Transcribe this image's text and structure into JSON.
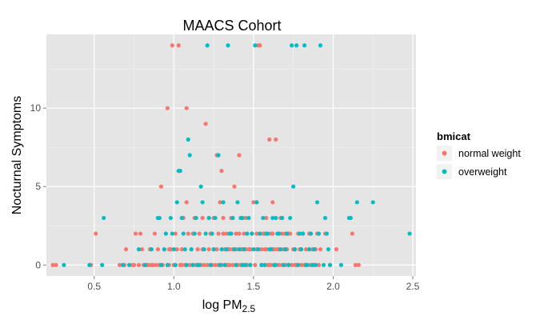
{
  "chart_data": {
    "type": "scatter",
    "title": "MAACS Cohort",
    "xlabel": "log PM",
    "xlabel_sub": "2.5",
    "ylabel": "Nocturnal Symptoms",
    "xlim": [
      0.2,
      2.52
    ],
    "ylim": [
      -0.7,
      14.7
    ],
    "x_ticks": [
      0.5,
      1.0,
      1.5,
      2.0,
      2.5
    ],
    "x_tick_labels": [
      "0.5",
      "1.0",
      "1.5",
      "2.0",
      "2.5"
    ],
    "y_ticks": [
      0,
      5,
      10
    ],
    "y_tick_labels": [
      "0",
      "5",
      "10"
    ],
    "grid": true,
    "legend": {
      "title": "bmicat",
      "placement": "right"
    },
    "series": [
      {
        "name": "normal weight",
        "color": "#F8766D",
        "points": [
          [
            0.24,
            0
          ],
          [
            0.26,
            0
          ],
          [
            0.48,
            0
          ],
          [
            0.51,
            2
          ],
          [
            0.66,
            0
          ],
          [
            0.69,
            0
          ],
          [
            0.7,
            1
          ],
          [
            0.74,
            0
          ],
          [
            0.75,
            0
          ],
          [
            0.76,
            2
          ],
          [
            0.78,
            0
          ],
          [
            0.79,
            2
          ],
          [
            0.8,
            1
          ],
          [
            0.81,
            0
          ],
          [
            0.83,
            0
          ],
          [
            0.84,
            0
          ],
          [
            0.85,
            1
          ],
          [
            0.86,
            0
          ],
          [
            0.87,
            0
          ],
          [
            0.88,
            2
          ],
          [
            0.89,
            0
          ],
          [
            0.9,
            1
          ],
          [
            0.91,
            0
          ],
          [
            0.92,
            5
          ],
          [
            0.93,
            0
          ],
          [
            0.94,
            1
          ],
          [
            0.95,
            2
          ],
          [
            0.96,
            10
          ],
          [
            0.97,
            0
          ],
          [
            0.98,
            1
          ],
          [
            0.99,
            14
          ],
          [
            1.0,
            0
          ],
          [
            1.01,
            2
          ],
          [
            1.02,
            1
          ],
          [
            1.03,
            14
          ],
          [
            1.04,
            0
          ],
          [
            1.05,
            1
          ],
          [
            1.06,
            3
          ],
          [
            1.07,
            0
          ],
          [
            1.08,
            10
          ],
          [
            1.09,
            2
          ],
          [
            1.1,
            0
          ],
          [
            1.11,
            1
          ],
          [
            1.12,
            0
          ],
          [
            1.13,
            3
          ],
          [
            1.14,
            0
          ],
          [
            1.15,
            1
          ],
          [
            1.16,
            2
          ],
          [
            1.17,
            0
          ],
          [
            1.18,
            1
          ],
          [
            1.19,
            0
          ],
          [
            1.2,
            9
          ],
          [
            1.21,
            0
          ],
          [
            1.22,
            1
          ],
          [
            1.23,
            2
          ],
          [
            1.24,
            0
          ],
          [
            1.25,
            3
          ],
          [
            1.26,
            0
          ],
          [
            1.27,
            1
          ],
          [
            1.28,
            0
          ],
          [
            1.29,
            4
          ],
          [
            1.3,
            0
          ],
          [
            1.31,
            2
          ],
          [
            1.32,
            1
          ],
          [
            1.33,
            0
          ],
          [
            1.34,
            1
          ],
          [
            1.35,
            0
          ],
          [
            1.36,
            2
          ],
          [
            1.37,
            0
          ],
          [
            1.38,
            5
          ],
          [
            1.39,
            1
          ],
          [
            1.4,
            0
          ],
          [
            1.41,
            2
          ],
          [
            1.42,
            0
          ],
          [
            1.43,
            1
          ],
          [
            1.44,
            0
          ],
          [
            1.45,
            3
          ],
          [
            1.46,
            0
          ],
          [
            1.47,
            1
          ],
          [
            1.48,
            0
          ],
          [
            1.49,
            2
          ],
          [
            1.5,
            4
          ],
          [
            1.51,
            0
          ],
          [
            1.52,
            1
          ],
          [
            1.53,
            14
          ],
          [
            1.54,
            14
          ],
          [
            1.55,
            0
          ],
          [
            1.56,
            2
          ],
          [
            1.57,
            0
          ],
          [
            1.58,
            1
          ],
          [
            1.59,
            0
          ],
          [
            1.6,
            8
          ],
          [
            1.61,
            0
          ],
          [
            1.62,
            2
          ],
          [
            1.63,
            0
          ],
          [
            1.64,
            8
          ],
          [
            1.65,
            1
          ],
          [
            1.66,
            0
          ],
          [
            1.67,
            3
          ],
          [
            1.7,
            0
          ],
          [
            1.72,
            2
          ],
          [
            1.75,
            1
          ],
          [
            1.78,
            2
          ],
          [
            1.82,
            0
          ],
          [
            1.85,
            2
          ],
          [
            1.88,
            0
          ],
          [
            1.92,
            1
          ],
          [
            1.98,
            0
          ],
          [
            2.02,
            1
          ],
          [
            2.12,
            2
          ],
          [
            2.14,
            0
          ],
          [
            2.16,
            0
          ],
          [
            1.68,
            0
          ],
          [
            1.71,
            1
          ],
          [
            1.73,
            2
          ],
          [
            1.76,
            0
          ],
          [
            1.79,
            1
          ],
          [
            1.81,
            2
          ],
          [
            1.87,
            1
          ],
          [
            1.9,
            2
          ],
          [
            1.95,
            2
          ],
          [
            0.97,
            1
          ],
          [
            1.05,
            0
          ],
          [
            1.15,
            0
          ],
          [
            1.25,
            1
          ],
          [
            1.35,
            1
          ],
          [
            1.45,
            1
          ],
          [
            1.55,
            1
          ],
          [
            1.63,
            1
          ],
          [
            1.69,
            1
          ],
          [
            1.74,
            0
          ],
          [
            1.77,
            0
          ],
          [
            1.83,
            1
          ],
          [
            1.86,
            0
          ],
          [
            1.89,
            1
          ],
          [
            1.91,
            0
          ],
          [
            1.18,
            3
          ],
          [
            1.22,
            3
          ],
          [
            1.31,
            3
          ],
          [
            1.36,
            3
          ],
          [
            1.42,
            3
          ],
          [
            1.58,
            3
          ],
          [
            1.62,
            4
          ],
          [
            1.3,
            6
          ],
          [
            1.27,
            7
          ],
          [
            1.41,
            7
          ],
          [
            1.08,
            4
          ],
          [
            1.52,
            4
          ],
          [
            1.12,
            2
          ],
          [
            1.28,
            2
          ],
          [
            1.33,
            2
          ],
          [
            1.46,
            2
          ],
          [
            1.52,
            2
          ],
          [
            1.57,
            2
          ],
          [
            1.61,
            2
          ],
          [
            1.66,
            2
          ],
          [
            1.7,
            2
          ],
          [
            1.34,
            0
          ],
          [
            1.37,
            1
          ],
          [
            1.39,
            2
          ],
          [
            1.42,
            1
          ],
          [
            1.44,
            2
          ],
          [
            1.48,
            1
          ],
          [
            1.54,
            2
          ],
          [
            1.57,
            1
          ],
          [
            1.6,
            0
          ],
          [
            1.62,
            1
          ],
          [
            1.64,
            0
          ],
          [
            1.66,
            1
          ],
          [
            1.68,
            2
          ],
          [
            1.72,
            0
          ],
          [
            1.76,
            1
          ],
          [
            1.8,
            0
          ]
        ]
      },
      {
        "name": "overweight",
        "color": "#00BFC4",
        "points": [
          [
            0.31,
            0
          ],
          [
            0.47,
            0
          ],
          [
            0.55,
            0
          ],
          [
            0.56,
            3
          ],
          [
            0.68,
            0
          ],
          [
            0.72,
            0
          ],
          [
            0.78,
            1
          ],
          [
            0.82,
            0
          ],
          [
            0.86,
            1
          ],
          [
            0.9,
            3
          ],
          [
            0.91,
            3
          ],
          [
            0.92,
            0
          ],
          [
            0.94,
            1
          ],
          [
            0.95,
            2
          ],
          [
            0.96,
            0
          ],
          [
            0.98,
            3
          ],
          [
            1.0,
            1
          ],
          [
            1.02,
            4
          ],
          [
            1.03,
            6
          ],
          [
            1.04,
            6
          ],
          [
            1.06,
            2
          ],
          [
            1.08,
            0
          ],
          [
            1.09,
            8
          ],
          [
            1.1,
            7
          ],
          [
            1.11,
            1
          ],
          [
            1.12,
            0
          ],
          [
            1.13,
            2
          ],
          [
            1.14,
            3
          ],
          [
            1.16,
            0
          ],
          [
            1.17,
            5
          ],
          [
            1.18,
            4
          ],
          [
            1.19,
            1
          ],
          [
            1.21,
            14
          ],
          [
            1.23,
            0
          ],
          [
            1.24,
            2
          ],
          [
            1.26,
            3
          ],
          [
            1.28,
            7
          ],
          [
            1.3,
            1
          ],
          [
            1.32,
            0
          ],
          [
            1.34,
            14
          ],
          [
            1.36,
            2
          ],
          [
            1.38,
            1
          ],
          [
            1.39,
            0
          ],
          [
            1.4,
            4
          ],
          [
            1.42,
            3
          ],
          [
            1.43,
            0
          ],
          [
            1.44,
            1
          ],
          [
            1.46,
            2
          ],
          [
            1.48,
            0
          ],
          [
            1.49,
            2
          ],
          [
            1.51,
            14
          ],
          [
            1.52,
            4
          ],
          [
            1.55,
            0
          ],
          [
            1.56,
            3
          ],
          [
            1.58,
            2
          ],
          [
            1.6,
            1
          ],
          [
            1.62,
            3
          ],
          [
            1.63,
            0
          ],
          [
            1.65,
            2
          ],
          [
            1.67,
            1
          ],
          [
            1.69,
            0
          ],
          [
            1.71,
            2
          ],
          [
            1.73,
            3
          ],
          [
            1.74,
            14
          ],
          [
            1.75,
            5
          ],
          [
            1.77,
            14
          ],
          [
            1.78,
            0
          ],
          [
            1.8,
            1
          ],
          [
            1.82,
            14
          ],
          [
            1.84,
            0
          ],
          [
            1.86,
            2
          ],
          [
            1.88,
            1
          ],
          [
            1.9,
            4
          ],
          [
            1.92,
            14
          ],
          [
            1.94,
            0
          ],
          [
            1.96,
            2
          ],
          [
            1.98,
            0
          ],
          [
            2.05,
            0
          ],
          [
            2.1,
            3
          ],
          [
            2.11,
            3
          ],
          [
            2.15,
            4
          ],
          [
            2.25,
            4
          ],
          [
            2.48,
            2
          ],
          [
            1.01,
            0
          ],
          [
            1.07,
            1
          ],
          [
            1.15,
            0
          ],
          [
            1.2,
            2
          ],
          [
            1.25,
            1
          ],
          [
            1.33,
            1
          ],
          [
            1.37,
            3
          ],
          [
            1.41,
            1
          ],
          [
            1.45,
            0
          ],
          [
            1.47,
            3
          ],
          [
            1.53,
            1
          ],
          [
            1.57,
            0
          ],
          [
            1.59,
            2
          ],
          [
            1.64,
            0
          ],
          [
            1.66,
            2
          ],
          [
            1.68,
            3
          ],
          [
            1.72,
            0
          ],
          [
            1.76,
            1
          ],
          [
            1.79,
            2
          ],
          [
            1.83,
            0
          ],
          [
            1.87,
            0
          ],
          [
            1.91,
            2
          ],
          [
            1.97,
            1
          ],
          [
            0.99,
            2
          ],
          [
            1.05,
            3
          ],
          [
            1.22,
            3
          ],
          [
            1.29,
            0
          ],
          [
            1.31,
            4
          ],
          [
            1.35,
            2
          ],
          [
            1.43,
            3
          ],
          [
            1.5,
            1
          ],
          [
            1.54,
            2
          ],
          [
            1.61,
            1
          ],
          [
            1.64,
            3
          ],
          [
            1.7,
            1
          ],
          [
            1.81,
            2
          ],
          [
            1.85,
            1
          ],
          [
            1.89,
            0
          ],
          [
            1.95,
            3
          ]
        ]
      }
    ]
  }
}
